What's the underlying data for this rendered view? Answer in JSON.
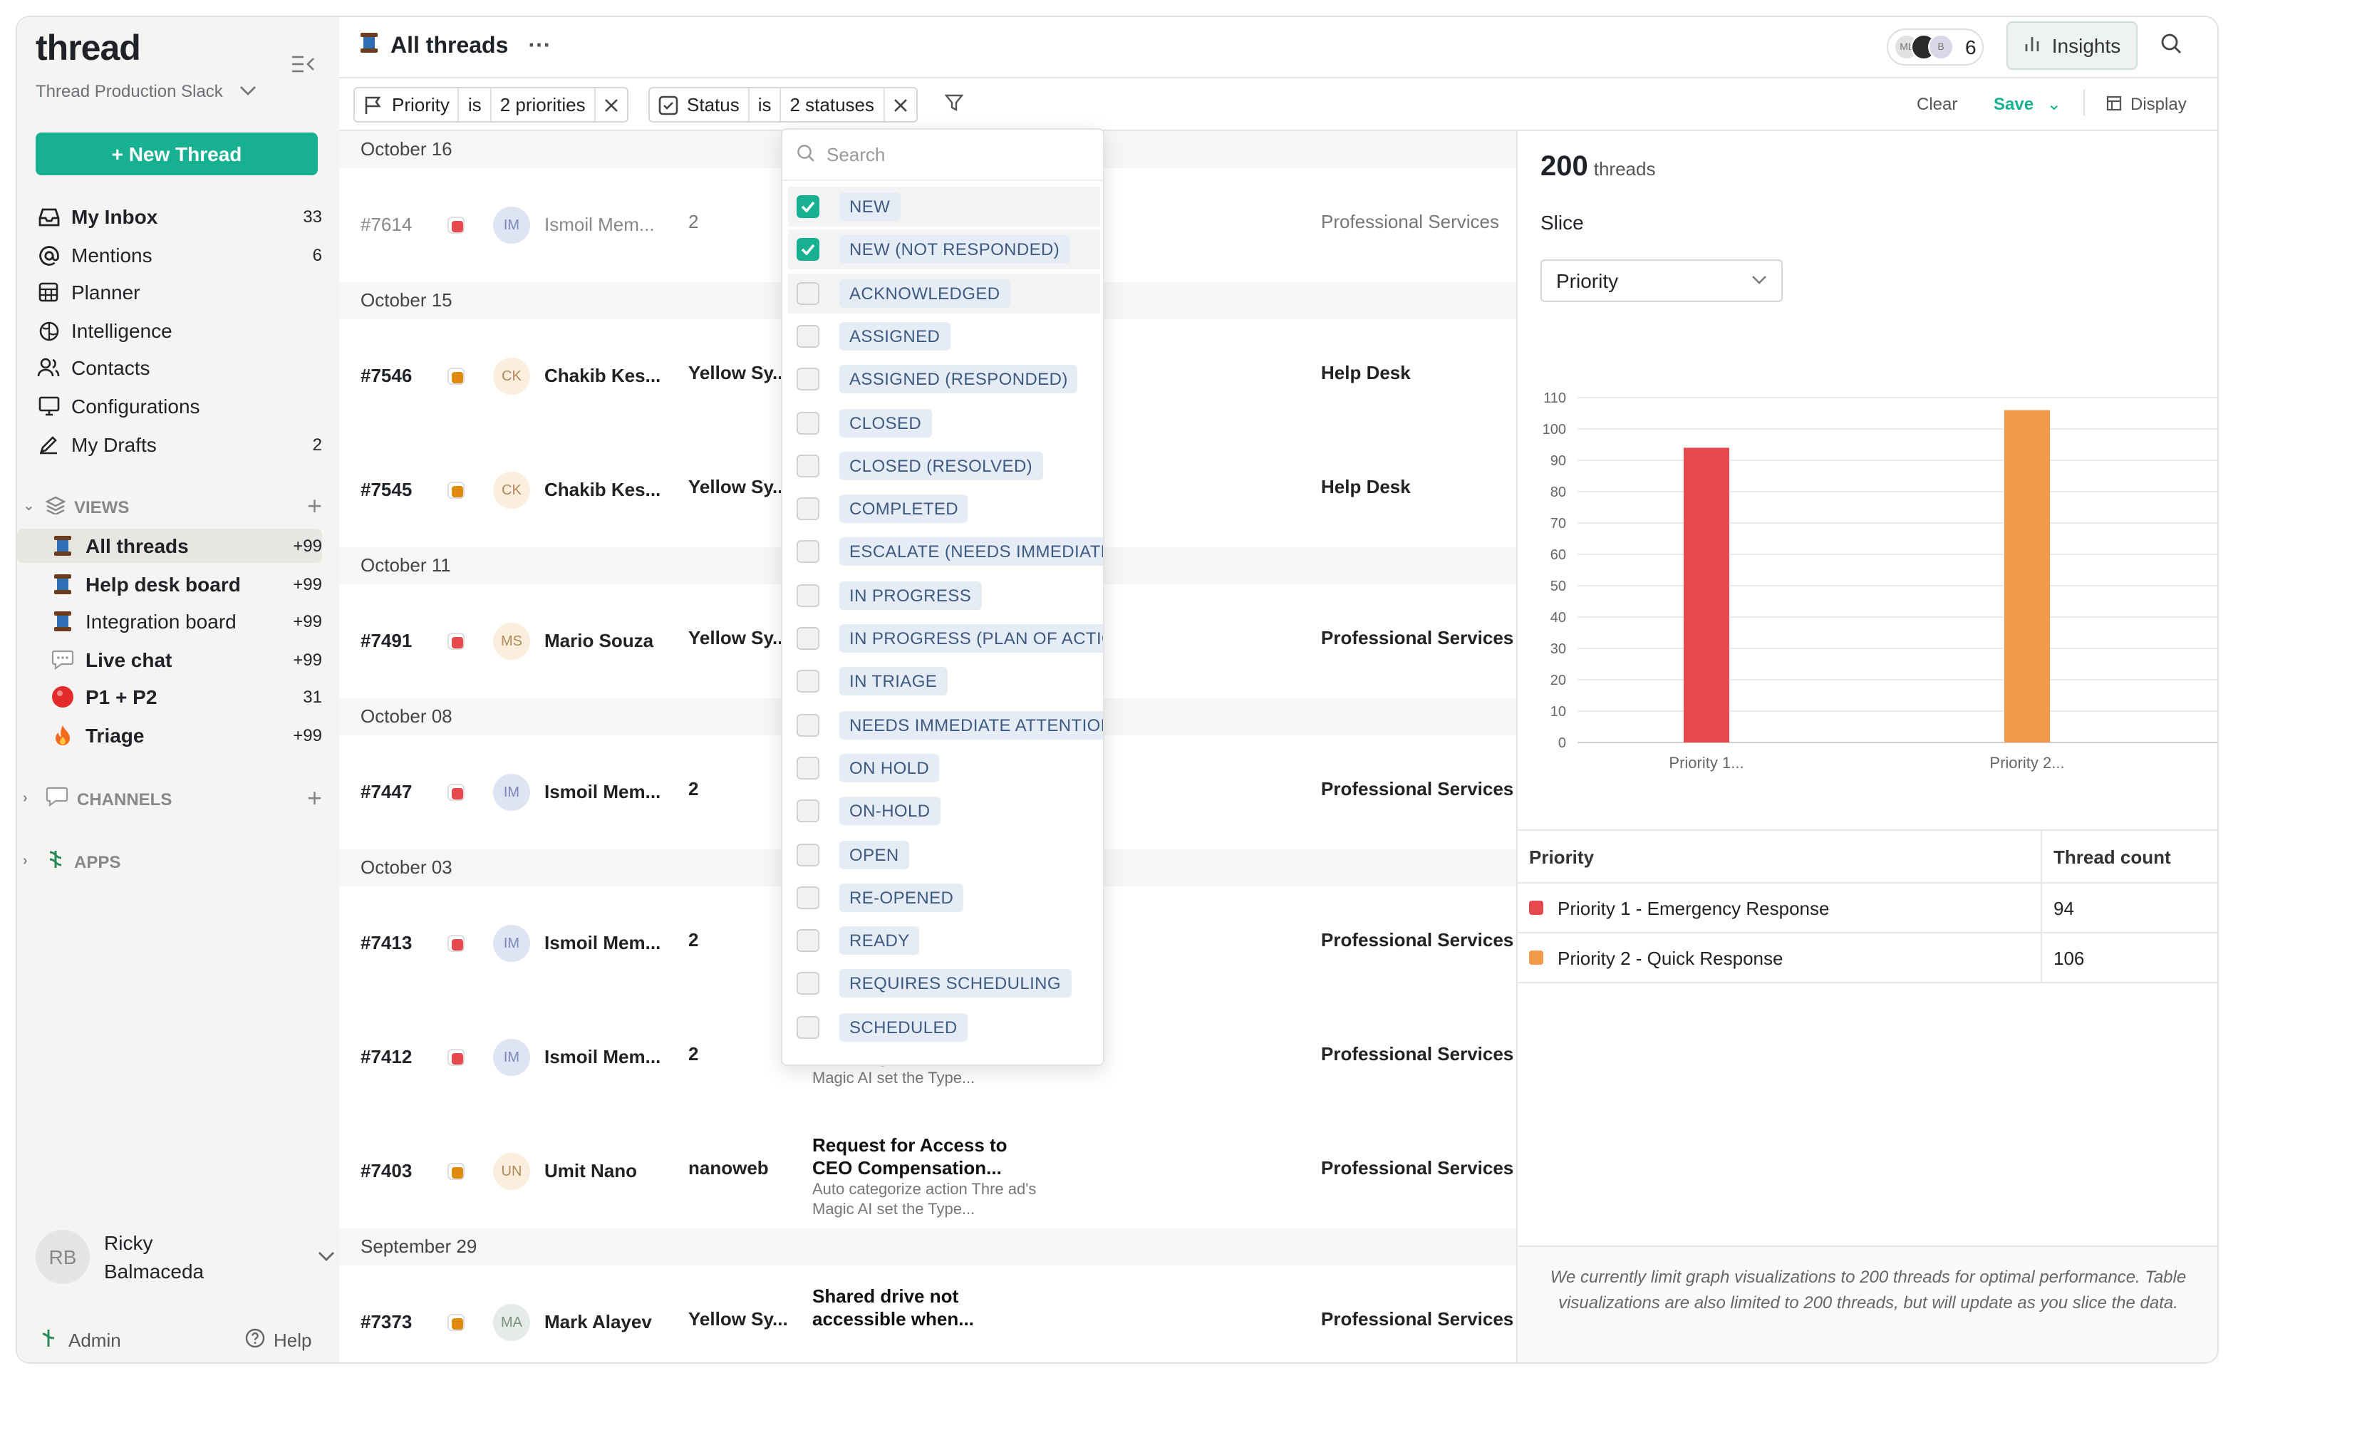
{
  "sidebar": {
    "logo": "thread",
    "workspace": "Thread Production Slack",
    "new_thread": "+ New Thread",
    "nav": [
      {
        "label": "My Inbox",
        "count": "33"
      },
      {
        "label": "Mentions",
        "count": "6"
      },
      {
        "label": "Planner",
        "count": ""
      },
      {
        "label": "Intelligence",
        "count": ""
      },
      {
        "label": "Contacts",
        "count": ""
      },
      {
        "label": "Configurations",
        "count": ""
      },
      {
        "label": "My Drafts",
        "count": "2"
      }
    ],
    "views_label": "VIEWS",
    "views": [
      {
        "label": "All threads",
        "count": "+99"
      },
      {
        "label": "Help desk board",
        "count": "+99"
      },
      {
        "label": "Integration board",
        "count": "+99"
      },
      {
        "label": "Live chat",
        "count": "+99"
      },
      {
        "label": "P1 + P2",
        "count": "31"
      },
      {
        "label": "Triage",
        "count": "+99"
      }
    ],
    "channels_label": "CHANNELS",
    "apps_label": "APPS",
    "user": {
      "initials": "RB",
      "first": "Ricky",
      "last": "Balmaceda"
    },
    "admin": "Admin",
    "help": "Help"
  },
  "header": {
    "title": "All threads",
    "avatars": [
      "ML",
      "",
      "B"
    ],
    "viewer_count": "6",
    "insights": "Insights"
  },
  "filters": {
    "priority": {
      "field": "Priority",
      "op": "is",
      "value": "2 priorities"
    },
    "status": {
      "field": "Status",
      "op": "is",
      "value": "2 statuses"
    },
    "clear": "Clear",
    "save": "Save",
    "display": "Display"
  },
  "groups": [
    "October 16",
    "October 15",
    "October 11",
    "October 08",
    "October 03",
    "September 29"
  ],
  "rows": [
    {
      "id": "#7614",
      "prio": "#e5484d",
      "initials": "IM",
      "name": "Ismoil Mem...",
      "org": "2",
      "team": "Professional Services",
      "muted": true
    },
    {
      "id": "#7546",
      "prio": "#e08a10",
      "initials": "CK",
      "name": "Chakib Kes...",
      "org": "Yellow Sy...",
      "team": "Help Desk"
    },
    {
      "id": "#7545",
      "prio": "#e08a10",
      "initials": "CK",
      "name": "Chakib Kes...",
      "org": "Yellow Sy...",
      "team": "Help Desk"
    },
    {
      "id": "#7491",
      "prio": "#e5484d",
      "initials": "MS",
      "name": "Mario Souza",
      "org": "Yellow Sy...",
      "team": "Professional Services"
    },
    {
      "id": "#7447",
      "prio": "#e5484d",
      "initials": "IM",
      "name": "Ismoil Mem...",
      "org": "2",
      "team": "Professional Services"
    },
    {
      "id": "#7413",
      "prio": "#e5484d",
      "initials": "IM",
      "name": "Ismoil Mem...",
      "org": "2",
      "team": "Professional Services"
    },
    {
      "id": "#7412",
      "prio": "#e5484d",
      "initials": "IM",
      "name": "Ismoil Mem...",
      "org": "2",
      "team": "Professional Services",
      "sub_title": "",
      "sub_desc": "Auto categorize action Thre ad's Magic AI set the Type..."
    },
    {
      "id": "#7403",
      "prio": "#e08a10",
      "initials": "UN",
      "name": "Umit Nano",
      "org": "nanoweb",
      "team": "Professional Services",
      "sub_title": "Request for Access to CEO Compensation...",
      "sub_desc": "Auto categorize action Thre ad's Magic AI set the Type..."
    },
    {
      "id": "#7373",
      "prio": "#e08a10",
      "initials": "MA",
      "name": "Mark Alayev",
      "org": "Yellow Sy...",
      "team": "Professional Services",
      "sub_title": "Shared drive not accessible when...",
      "sub_desc": ""
    }
  ],
  "status_dropdown": {
    "search_placeholder": "Search",
    "options": [
      {
        "label": "NEW",
        "checked": true
      },
      {
        "label": "NEW (NOT RESPONDED)",
        "checked": true
      },
      {
        "label": "ACKNOWLEDGED",
        "checked": false
      },
      {
        "label": "ASSIGNED",
        "checked": false
      },
      {
        "label": "ASSIGNED (RESPONDED)",
        "checked": false
      },
      {
        "label": "CLOSED",
        "checked": false
      },
      {
        "label": "CLOSED (RESOLVED)",
        "checked": false
      },
      {
        "label": "COMPLETED",
        "checked": false
      },
      {
        "label": "ESCALATE (NEEDS IMMEDIATE A",
        "checked": false
      },
      {
        "label": "IN PROGRESS",
        "checked": false
      },
      {
        "label": "IN PROGRESS (PLAN OF ACTION)",
        "checked": false
      },
      {
        "label": "IN TRIAGE",
        "checked": false
      },
      {
        "label": "NEEDS IMMEDIATE ATTENTION",
        "checked": false
      },
      {
        "label": "ON HOLD",
        "checked": false
      },
      {
        "label": "ON-HOLD",
        "checked": false
      },
      {
        "label": "OPEN",
        "checked": false
      },
      {
        "label": "RE-OPENED",
        "checked": false
      },
      {
        "label": "READY",
        "checked": false
      },
      {
        "label": "REQUIRES SCHEDULING",
        "checked": false
      },
      {
        "label": "SCHEDULED",
        "checked": false
      }
    ]
  },
  "insights": {
    "total": "200",
    "total_label": "threads",
    "slice_label": "Slice",
    "slice_value": "Priority",
    "table": {
      "headers": [
        "Priority",
        "Thread count"
      ],
      "rows": [
        {
          "label": "Priority 1 - Emergency Response",
          "count": "94",
          "color": "#e5484d"
        },
        {
          "label": "Priority 2 - Quick Response",
          "count": "106",
          "color": "#f2994a"
        }
      ]
    },
    "note": "We currently limit graph visualizations to 200 threads for optimal performance. Table visualizations are also limited to 200 threads, but will update as you slice the data."
  },
  "chart_data": {
    "type": "bar",
    "categories": [
      "Priority 1...",
      "Priority 2..."
    ],
    "values": [
      94,
      106
    ],
    "colors": [
      "#e5484d",
      "#f2994a"
    ],
    "ylim": [
      0,
      110
    ],
    "yticks": [
      0,
      10,
      20,
      30,
      40,
      50,
      60,
      70,
      80,
      90,
      100,
      110
    ],
    "grid": true
  }
}
